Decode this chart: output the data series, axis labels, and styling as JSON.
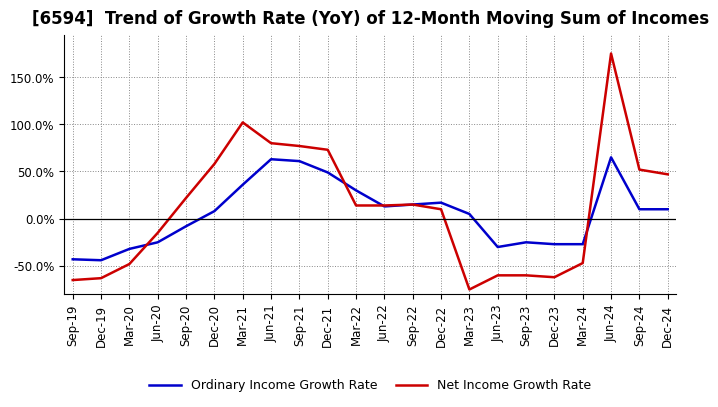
{
  "title": "[6594]  Trend of Growth Rate (YoY) of 12-Month Moving Sum of Incomes",
  "x_labels": [
    "Sep-19",
    "Dec-19",
    "Mar-20",
    "Jun-20",
    "Sep-20",
    "Dec-20",
    "Mar-21",
    "Jun-21",
    "Sep-21",
    "Dec-21",
    "Mar-22",
    "Jun-22",
    "Sep-22",
    "Dec-22",
    "Mar-23",
    "Jun-23",
    "Sep-23",
    "Dec-23",
    "Mar-24",
    "Jun-24",
    "Sep-24",
    "Dec-24"
  ],
  "ordinary_income": [
    -43,
    -44,
    -32,
    -25,
    -8,
    8,
    36,
    63,
    61,
    49,
    30,
    13,
    15,
    17,
    5,
    -30,
    -25,
    -27,
    -27,
    65,
    10,
    10
  ],
  "net_income": [
    -65,
    -63,
    -48,
    -15,
    22,
    58,
    102,
    80,
    77,
    73,
    14,
    14,
    15,
    10,
    -75,
    -60,
    -60,
    -62,
    -47,
    175,
    52,
    47
  ],
  "ylim": [
    -80,
    195
  ],
  "yticks": [
    -50,
    0,
    50,
    100,
    150
  ],
  "ordinary_color": "#0000cc",
  "net_color": "#cc0000",
  "bg_color": "#ffffff",
  "legend_ordinary": "Ordinary Income Growth Rate",
  "legend_net": "Net Income Growth Rate",
  "title_fontsize": 12,
  "tick_fontsize": 8.5,
  "legend_fontsize": 9
}
